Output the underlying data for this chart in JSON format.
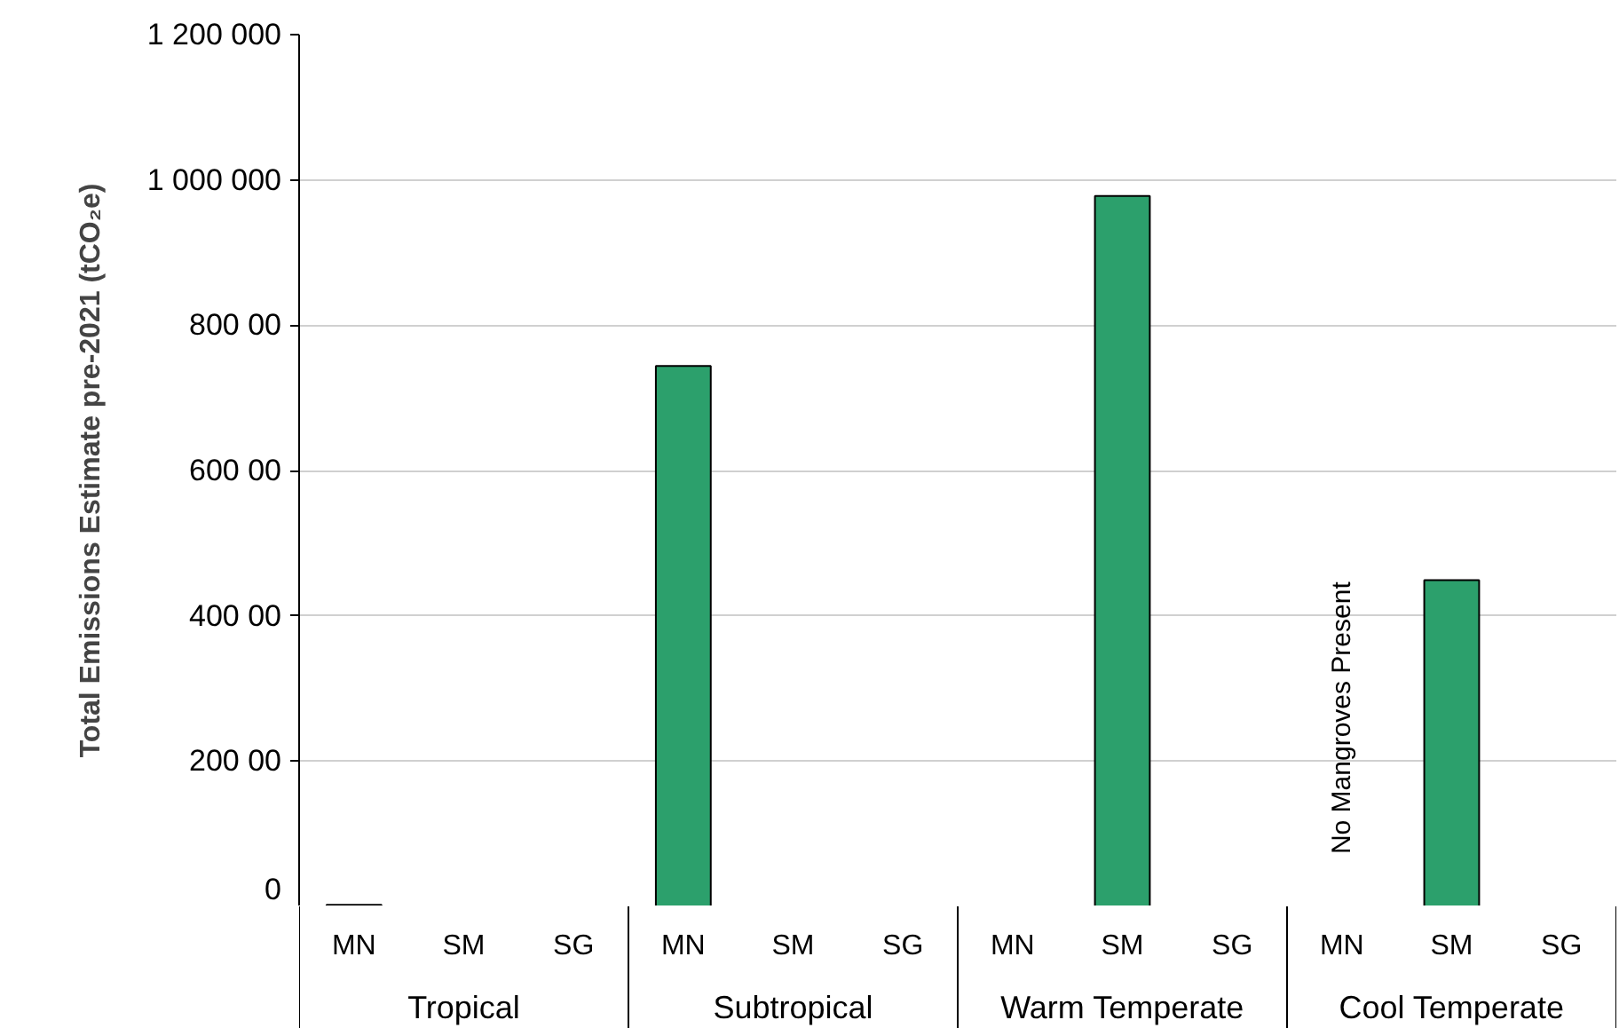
{
  "chart_data": {
    "type": "bar",
    "ylabel": "Total Emissions Estimate pre-2021 (tCO₂e)",
    "categories": [
      "MN",
      "SM",
      "SG",
      "MN",
      "SM",
      "SG",
      "MN",
      "SM",
      "SG",
      "MN",
      "SM",
      "SG"
    ],
    "values": [
      2000,
      null,
      null,
      744000,
      null,
      null,
      null,
      978000,
      null,
      null,
      449000,
      null
    ],
    "color": "#2ca06c",
    "ylim": [
      0,
      1200000
    ],
    "yticks": [
      0,
      {
        "value": 200000,
        "label": "200 00"
      },
      {
        "value": 400000,
        "label": "400 00"
      },
      {
        "value": 600000,
        "label": "600 00"
      },
      {
        "value": 800000,
        "label": "800 00"
      },
      {
        "value": 1000000,
        "label": "1 000 000"
      },
      {
        "value": 1200000,
        "label": "1 200 000"
      }
    ],
    "grid": "y",
    "annotations": [
      "Tropical",
      "Subtropical",
      "Warm Temperate",
      "Cool Temperate",
      "No Mangroves Present"
    ]
  }
}
